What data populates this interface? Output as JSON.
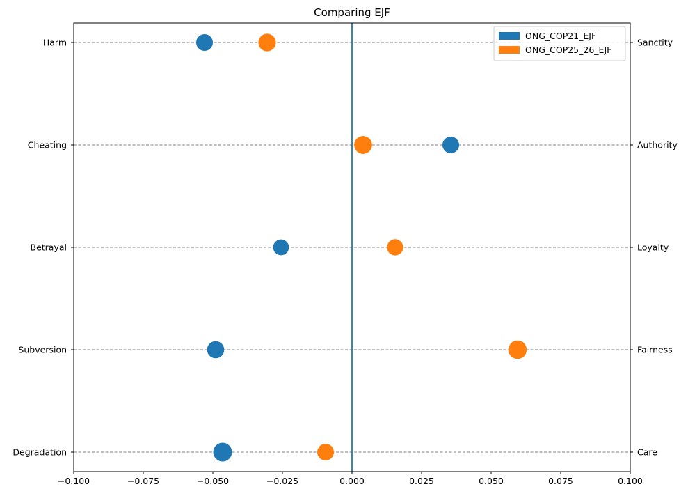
{
  "chart_data": {
    "type": "scatter",
    "title": "Comparing EJF",
    "xlim": [
      -0.1,
      0.1
    ],
    "x_ticks": [
      -0.1,
      -0.075,
      -0.05,
      -0.025,
      0.0,
      0.025,
      0.05,
      0.075,
      0.1
    ],
    "x_tick_labels": [
      "−0.100",
      "−0.075",
      "−0.050",
      "−0.025",
      "0.000",
      "0.025",
      "0.050",
      "0.075",
      "0.100"
    ],
    "left_labels": [
      "Harm",
      "Cheating",
      "Betrayal",
      "Subversion",
      "Degradation"
    ],
    "right_labels": [
      "Sanctity",
      "Authority",
      "Loyalty",
      "Fairness",
      "Care"
    ],
    "zero_line": 0.0,
    "grid": "horizontal dashed at each category",
    "legend_position": "top-right",
    "series": [
      {
        "name": "ONG_COP21_EJF",
        "color": "#1f77b4",
        "x": [
          -0.053,
          0.0355,
          -0.0255,
          -0.049,
          -0.0465
        ],
        "size": [
          0.5,
          0.5,
          0.4,
          0.55,
          0.75
        ]
      },
      {
        "name": "ONG_COP25_26_EJF",
        "color": "#ff7f0e",
        "x": [
          -0.0305,
          0.004,
          0.0155,
          0.0595,
          -0.0095
        ],
        "size": [
          0.6,
          0.65,
          0.45,
          0.7,
          0.5
        ]
      }
    ]
  }
}
